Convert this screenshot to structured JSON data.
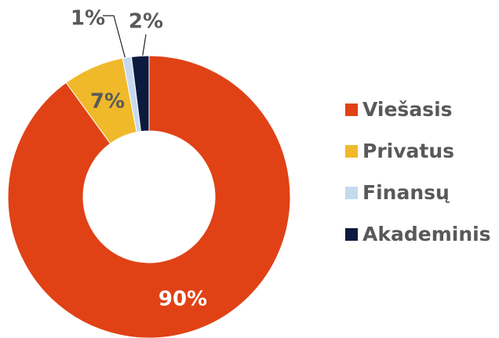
{
  "chart_data": {
    "type": "donut",
    "categories": [
      "Viešasis",
      "Privatus",
      "Finansų",
      "Akademinis"
    ],
    "values": [
      90,
      7,
      1,
      2
    ],
    "value_labels": [
      "90%",
      "7%",
      "1%",
      "2%"
    ],
    "colors": [
      "#e04216",
      "#f0b92a",
      "#c5d9f1",
      "#0d1a40"
    ],
    "legend": "right"
  }
}
